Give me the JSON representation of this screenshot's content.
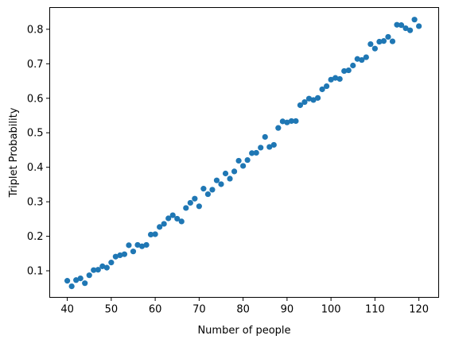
{
  "chart_data": {
    "type": "scatter",
    "title": "",
    "xlabel": "Number of people",
    "ylabel": "Triplet Probability",
    "xlim": [
      36,
      124.5
    ],
    "ylim": [
      0.023,
      0.863
    ],
    "xticks": [
      40,
      50,
      60,
      70,
      80,
      90,
      100,
      110,
      120
    ],
    "yticks": [
      0.1,
      0.2,
      0.3,
      0.4,
      0.5,
      0.6,
      0.7,
      0.8
    ],
    "grid": false,
    "legend": "none",
    "color": "#1f77b4",
    "series": [
      {
        "x": [
          40,
          41,
          42,
          43,
          44,
          45,
          46,
          47,
          48,
          49,
          50,
          51,
          52,
          53,
          54,
          55,
          56,
          57,
          58,
          59,
          60,
          61,
          62,
          63,
          64,
          65,
          66,
          67,
          68,
          69,
          70,
          71,
          72,
          73,
          74,
          75,
          76,
          77,
          78,
          79,
          80,
          81,
          82,
          83,
          84,
          85,
          86,
          87,
          88,
          89,
          90,
          91,
          92,
          93,
          94,
          95,
          96,
          97,
          98,
          99,
          100,
          101,
          102,
          103,
          104,
          105,
          106,
          107,
          108,
          109,
          110,
          111,
          112,
          113,
          114,
          115,
          116,
          117,
          118,
          119,
          120
        ],
        "y": [
          0.071,
          0.055,
          0.073,
          0.078,
          0.064,
          0.087,
          0.102,
          0.103,
          0.113,
          0.109,
          0.124,
          0.141,
          0.145,
          0.148,
          0.174,
          0.156,
          0.175,
          0.171,
          0.175,
          0.205,
          0.206,
          0.227,
          0.236,
          0.252,
          0.261,
          0.251,
          0.243,
          0.282,
          0.297,
          0.309,
          0.287,
          0.338,
          0.322,
          0.335,
          0.362,
          0.351,
          0.382,
          0.367,
          0.388,
          0.419,
          0.404,
          0.421,
          0.441,
          0.442,
          0.457,
          0.488,
          0.459,
          0.465,
          0.514,
          0.533,
          0.53,
          0.534,
          0.534,
          0.58,
          0.589,
          0.599,
          0.595,
          0.601,
          0.626,
          0.635,
          0.654,
          0.659,
          0.656,
          0.679,
          0.681,
          0.695,
          0.714,
          0.711,
          0.719,
          0.757,
          0.744,
          0.764,
          0.766,
          0.778,
          0.765,
          0.813,
          0.812,
          0.803,
          0.797,
          0.828,
          0.809
        ]
      }
    ]
  }
}
